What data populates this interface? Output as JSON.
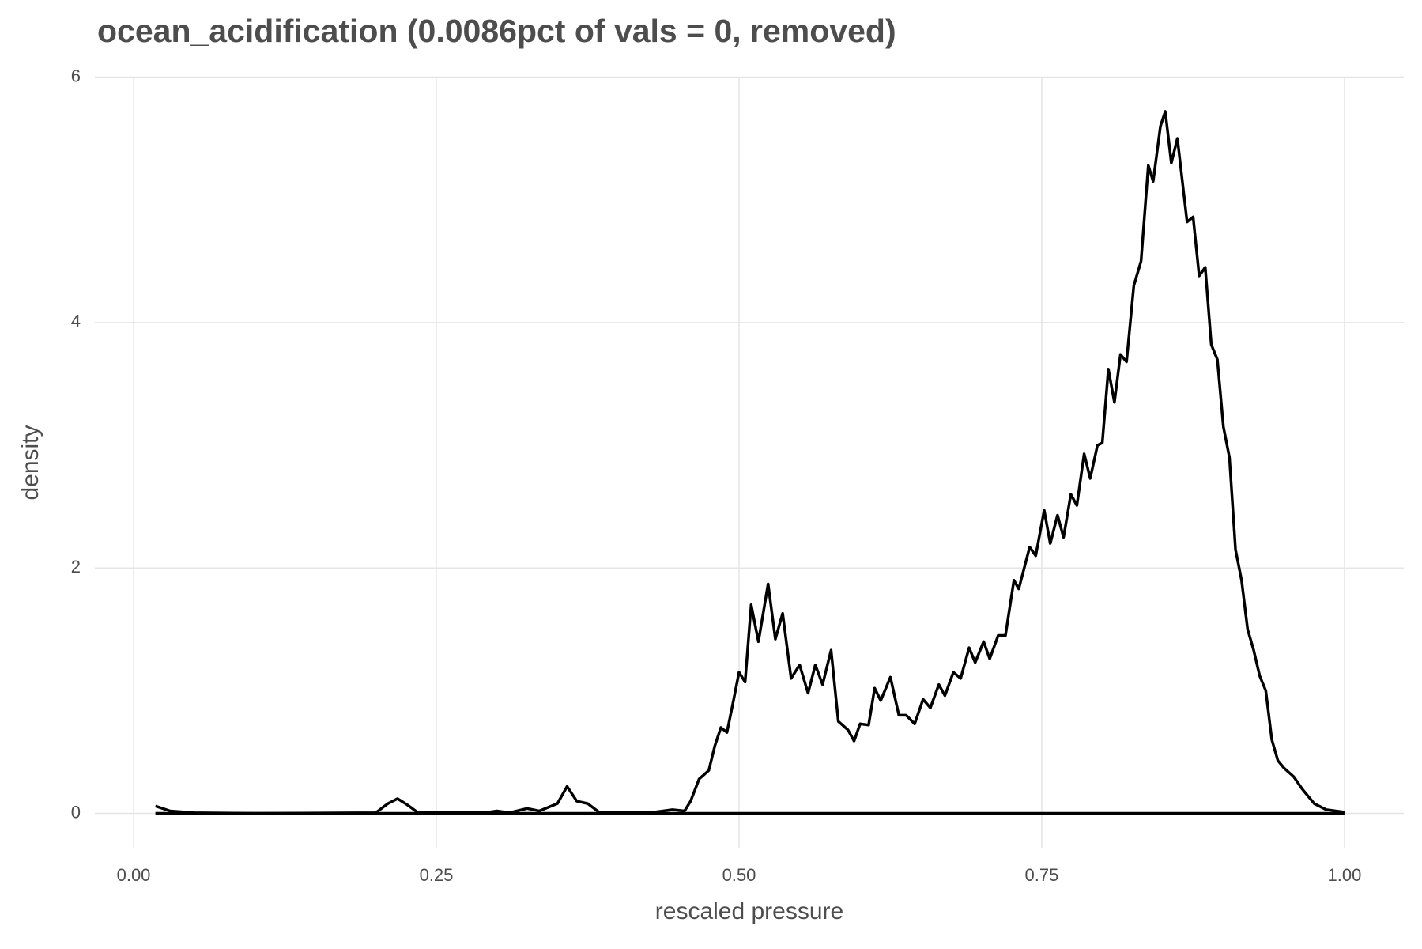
{
  "chart_data": {
    "type": "line",
    "title": "ocean_acidification (0.0086pct of vals = 0, removed)",
    "x_label": "rescaled pressure",
    "y_label": "density",
    "x": [
      0.018,
      0.03,
      0.05,
      0.1,
      0.2,
      0.21,
      0.218,
      0.226,
      0.235,
      0.29,
      0.3,
      0.31,
      0.325,
      0.335,
      0.35,
      0.358,
      0.366,
      0.375,
      0.385,
      0.43,
      0.445,
      0.455,
      0.46,
      0.467,
      0.475,
      0.48,
      0.485,
      0.49,
      0.495,
      0.5,
      0.505,
      0.51,
      0.516,
      0.524,
      0.53,
      0.536,
      0.543,
      0.55,
      0.557,
      0.563,
      0.569,
      0.576,
      0.582,
      0.59,
      0.595,
      0.6,
      0.607,
      0.612,
      0.617,
      0.625,
      0.632,
      0.638,
      0.645,
      0.652,
      0.658,
      0.665,
      0.67,
      0.677,
      0.683,
      0.69,
      0.695,
      0.702,
      0.707,
      0.714,
      0.72,
      0.727,
      0.731,
      0.74,
      0.745,
      0.752,
      0.757,
      0.763,
      0.768,
      0.774,
      0.779,
      0.785,
      0.79,
      0.796,
      0.8,
      0.805,
      0.81,
      0.815,
      0.82,
      0.826,
      0.832,
      0.838,
      0.842,
      0.848,
      0.852,
      0.857,
      0.862,
      0.87,
      0.875,
      0.88,
      0.885,
      0.89,
      0.895,
      0.9,
      0.905,
      0.91,
      0.915,
      0.92,
      0.925,
      0.93,
      0.935,
      0.94,
      0.945,
      0.95,
      0.958,
      0.965,
      0.975,
      0.985,
      1.0
    ],
    "series": [
      {
        "color": "#000000",
        "values": [
          0.06,
          0.02,
          0.005,
          0,
          0.005,
          0.08,
          0.12,
          0.07,
          0.005,
          0.005,
          0.02,
          0.005,
          0.04,
          0.02,
          0.08,
          0.22,
          0.1,
          0.08,
          0.005,
          0.01,
          0.03,
          0.02,
          0.1,
          0.28,
          0.35,
          0.55,
          0.7,
          0.66,
          0.9,
          1.15,
          1.07,
          1.7,
          1.4,
          1.87,
          1.42,
          1.63,
          1.1,
          1.21,
          0.98,
          1.21,
          1.05,
          1.33,
          0.75,
          0.68,
          0.59,
          0.73,
          0.72,
          1.02,
          0.92,
          1.11,
          0.8,
          0.8,
          0.73,
          0.93,
          0.86,
          1.05,
          0.96,
          1.15,
          1.1,
          1.35,
          1.23,
          1.4,
          1.26,
          1.45,
          1.45,
          1.9,
          1.83,
          2.17,
          2.1,
          2.47,
          2.2,
          2.43,
          2.25,
          2.6,
          2.51,
          2.93,
          2.73,
          3.0,
          3.02,
          3.62,
          3.35,
          3.74,
          3.68,
          4.3,
          4.5,
          5.28,
          5.15,
          5.6,
          5.72,
          5.3,
          5.5,
          4.82,
          4.86,
          4.38,
          4.45,
          3.82,
          3.7,
          3.15,
          2.9,
          2.15,
          1.9,
          1.5,
          1.33,
          1.12,
          1.0,
          0.6,
          0.43,
          0.37,
          0.3,
          0.2,
          0.08,
          0.03,
          0.01
        ]
      }
    ],
    "xlim": [
      -0.032,
      1.049
    ],
    "xticks": [
      {
        "value": 0,
        "label": "0.00"
      },
      {
        "value": 0.25,
        "label": "0.25"
      },
      {
        "value": 0.5,
        "label": "0.50"
      },
      {
        "value": 0.75,
        "label": "0.75"
      },
      {
        "value": 1,
        "label": "1.00"
      }
    ],
    "ylim": [
      -0.28,
      6.0
    ],
    "yticks": [
      0,
      2,
      4,
      6
    ],
    "grid": true
  }
}
